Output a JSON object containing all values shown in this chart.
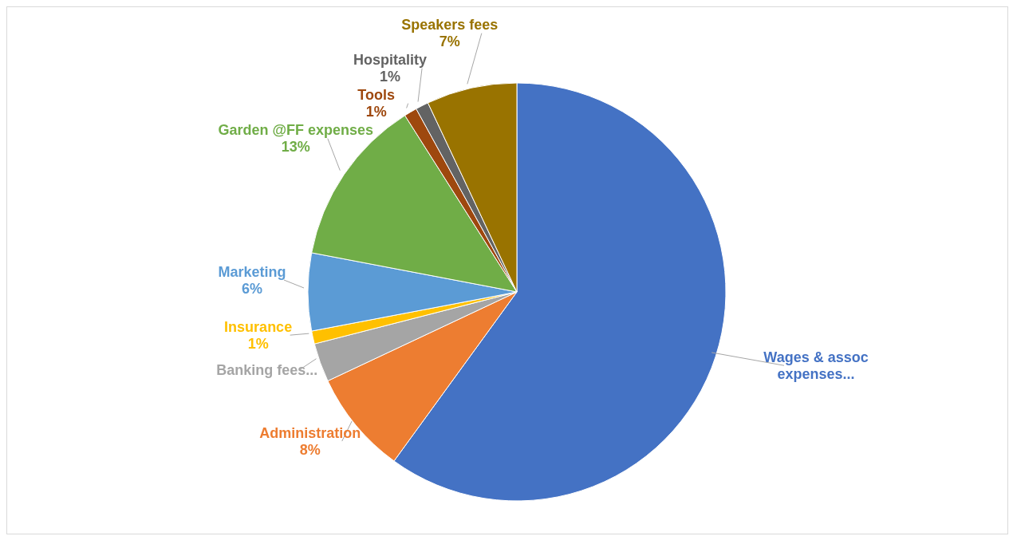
{
  "chart_data": {
    "type": "pie",
    "categories": [
      "Wages & assoc expenses...",
      "Administration",
      "Banking fees...",
      "Insurance",
      "Marketing",
      "Garden @FF expenses",
      "Tools",
      "Hospitality",
      "Speakers fees"
    ],
    "values": [
      60,
      8,
      3,
      1,
      6,
      13,
      1,
      1,
      7
    ],
    "value_labels": [
      null,
      "8%",
      null,
      "1%",
      "6%",
      "13%",
      "1%",
      "1%",
      "7%"
    ],
    "colors": [
      "#4472c4",
      "#ed7d31",
      "#a5a5a5",
      "#ffc000",
      "#5b9bd5",
      "#70ad47",
      "#9e480e",
      "#636363",
      "#997300"
    ]
  }
}
